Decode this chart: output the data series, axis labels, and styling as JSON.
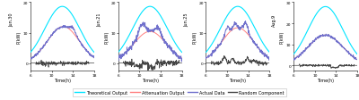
{
  "panels": [
    {
      "title": "Jun.30",
      "ylabel": "P(kW)",
      "ymax": 20,
      "yticks": [
        0,
        10,
        20
      ]
    },
    {
      "title": "Jun.21",
      "ylabel": "P(kW)",
      "ymax": 20,
      "yticks": [
        0,
        10,
        20
      ]
    },
    {
      "title": "Jun.25",
      "ylabel": "P(kW)",
      "ymax": 20,
      "yticks": [
        0,
        10,
        20
      ]
    },
    {
      "title": "Aug.9",
      "ylabel": "P(kW)",
      "ymax": 30,
      "yticks": [
        0,
        10,
        20,
        30
      ]
    }
  ],
  "xlabel": "Time(h)",
  "xmin": 6,
  "xmax": 18,
  "xticks": [
    6,
    10,
    14,
    18
  ],
  "colors": {
    "theoretical": "#00E5FF",
    "attenuation": "#FF8080",
    "actual": "#7070CC",
    "random": "#444444"
  },
  "legend_labels": [
    "Theoretical Output",
    "Attenuation Output",
    "Actual Data",
    "Random Component"
  ],
  "background": "#FFFFFF"
}
